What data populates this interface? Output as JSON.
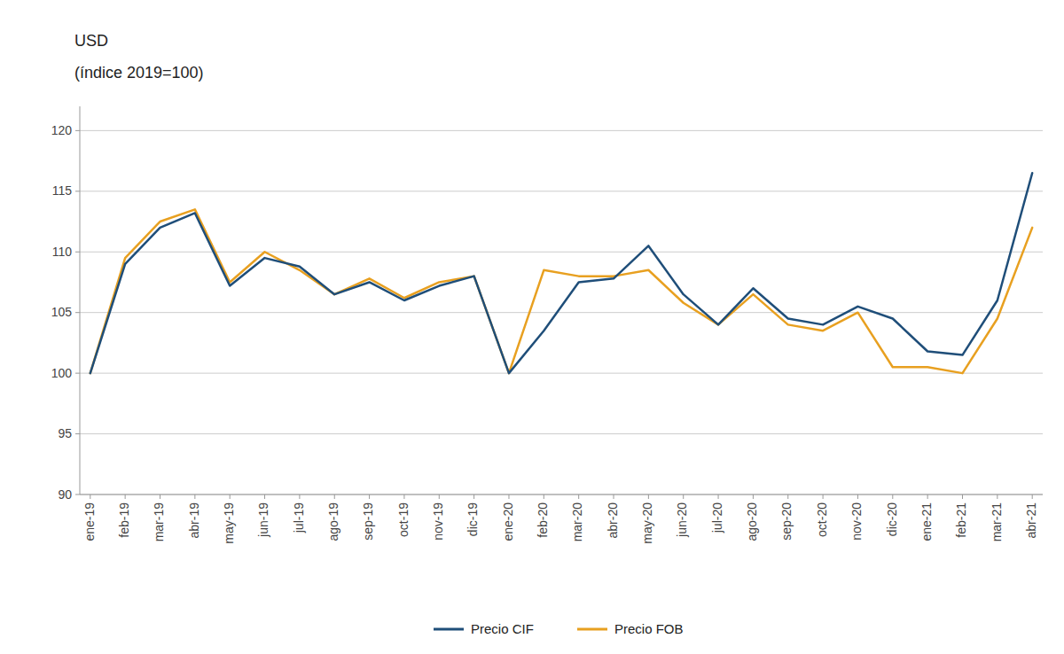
{
  "chart_data": {
    "type": "line",
    "ylabel": [
      "USD",
      "(índice 2019=100)"
    ],
    "categories": [
      "ene-19",
      "feb-19",
      "mar-19",
      "abr-19",
      "may-19",
      "jun-19",
      "jul-19",
      "ago-19",
      "sep-19",
      "oct-19",
      "nov-19",
      "dic-19",
      "ene-20",
      "feb-20",
      "mar-20",
      "abr-20",
      "may-20",
      "jun-20",
      "jul-20",
      "ago-20",
      "sep-20",
      "oct-20",
      "nov-20",
      "dic-20",
      "ene-21",
      "feb-21",
      "mar-21",
      "abr-21"
    ],
    "series": [
      {
        "name": "Precio CIF",
        "color": "#1f4e79",
        "values": [
          100.0,
          109.0,
          112.0,
          113.2,
          107.2,
          109.5,
          108.8,
          106.5,
          107.5,
          106.0,
          107.2,
          108.0,
          100.0,
          103.5,
          107.5,
          107.8,
          110.5,
          106.5,
          104.0,
          107.0,
          104.5,
          104.0,
          105.5,
          104.5,
          101.8,
          101.5,
          106.0,
          116.5
        ]
      },
      {
        "name": "Precio FOB",
        "color": "#e8a020",
        "values": [
          100.0,
          109.5,
          112.5,
          113.5,
          107.5,
          110.0,
          108.5,
          106.5,
          107.8,
          106.2,
          107.5,
          108.0,
          100.0,
          108.5,
          108.0,
          108.0,
          108.5,
          105.8,
          104.0,
          106.5,
          104.0,
          103.5,
          105.0,
          100.5,
          100.5,
          100.0,
          104.5,
          112.0
        ]
      }
    ],
    "ylim": [
      90,
      122
    ],
    "yticks": [
      90,
      95,
      100,
      105,
      110,
      115,
      120
    ],
    "grid": true,
    "legend": "bottom"
  }
}
